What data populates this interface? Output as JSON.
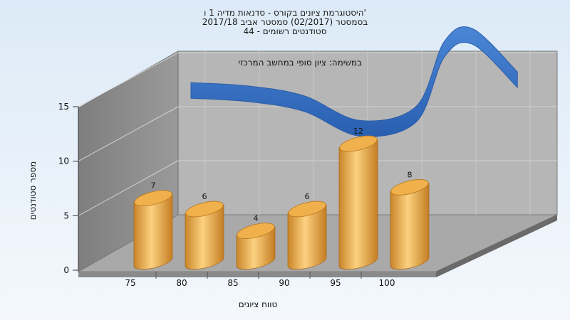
{
  "chart_data": {
    "type": "bar",
    "title_lines": [
      "היסטוגרמת ציונים בקורס - סדנאות מדיה 1 ו'",
      "בסמסטר  (02/2017)  סמסטר אביב 2017/18",
      "סטודנטים רשומים - 44"
    ],
    "annotation": "במשימה: ציון סופי במחשב המרכזי",
    "xlabel": "טווח ציונים",
    "ylabel": "מספר סטודנטים",
    "x_ticks": [
      "75",
      "80",
      "85",
      "90",
      "95",
      "100"
    ],
    "y_ticks": [
      "0",
      "5",
      "10",
      "15"
    ],
    "ylim": [
      0,
      15
    ],
    "categories": [
      75,
      80,
      85,
      90,
      95,
      100
    ],
    "values": [
      7,
      6,
      4,
      6,
      12,
      8
    ],
    "curve": [
      {
        "x": 75,
        "y": 11.5
      },
      {
        "x": 80,
        "y": 11.2
      },
      {
        "x": 85,
        "y": 10.3
      },
      {
        "x": 90,
        "y": 8.0
      },
      {
        "x": 95,
        "y": 9.3
      },
      {
        "x": 97.5,
        "y": 15.3
      },
      {
        "x": 100,
        "y": 16.5
      },
      {
        "x": 104,
        "y": 12.5
      }
    ],
    "grid": true,
    "colors": {
      "bar": "#e8a33c",
      "curve": "#3a72c4",
      "back_wall": "#b5b5b5",
      "side_wall": "#8c8c8c",
      "floor": "#a8a8a8",
      "page_background": "#eaf3fb"
    }
  }
}
